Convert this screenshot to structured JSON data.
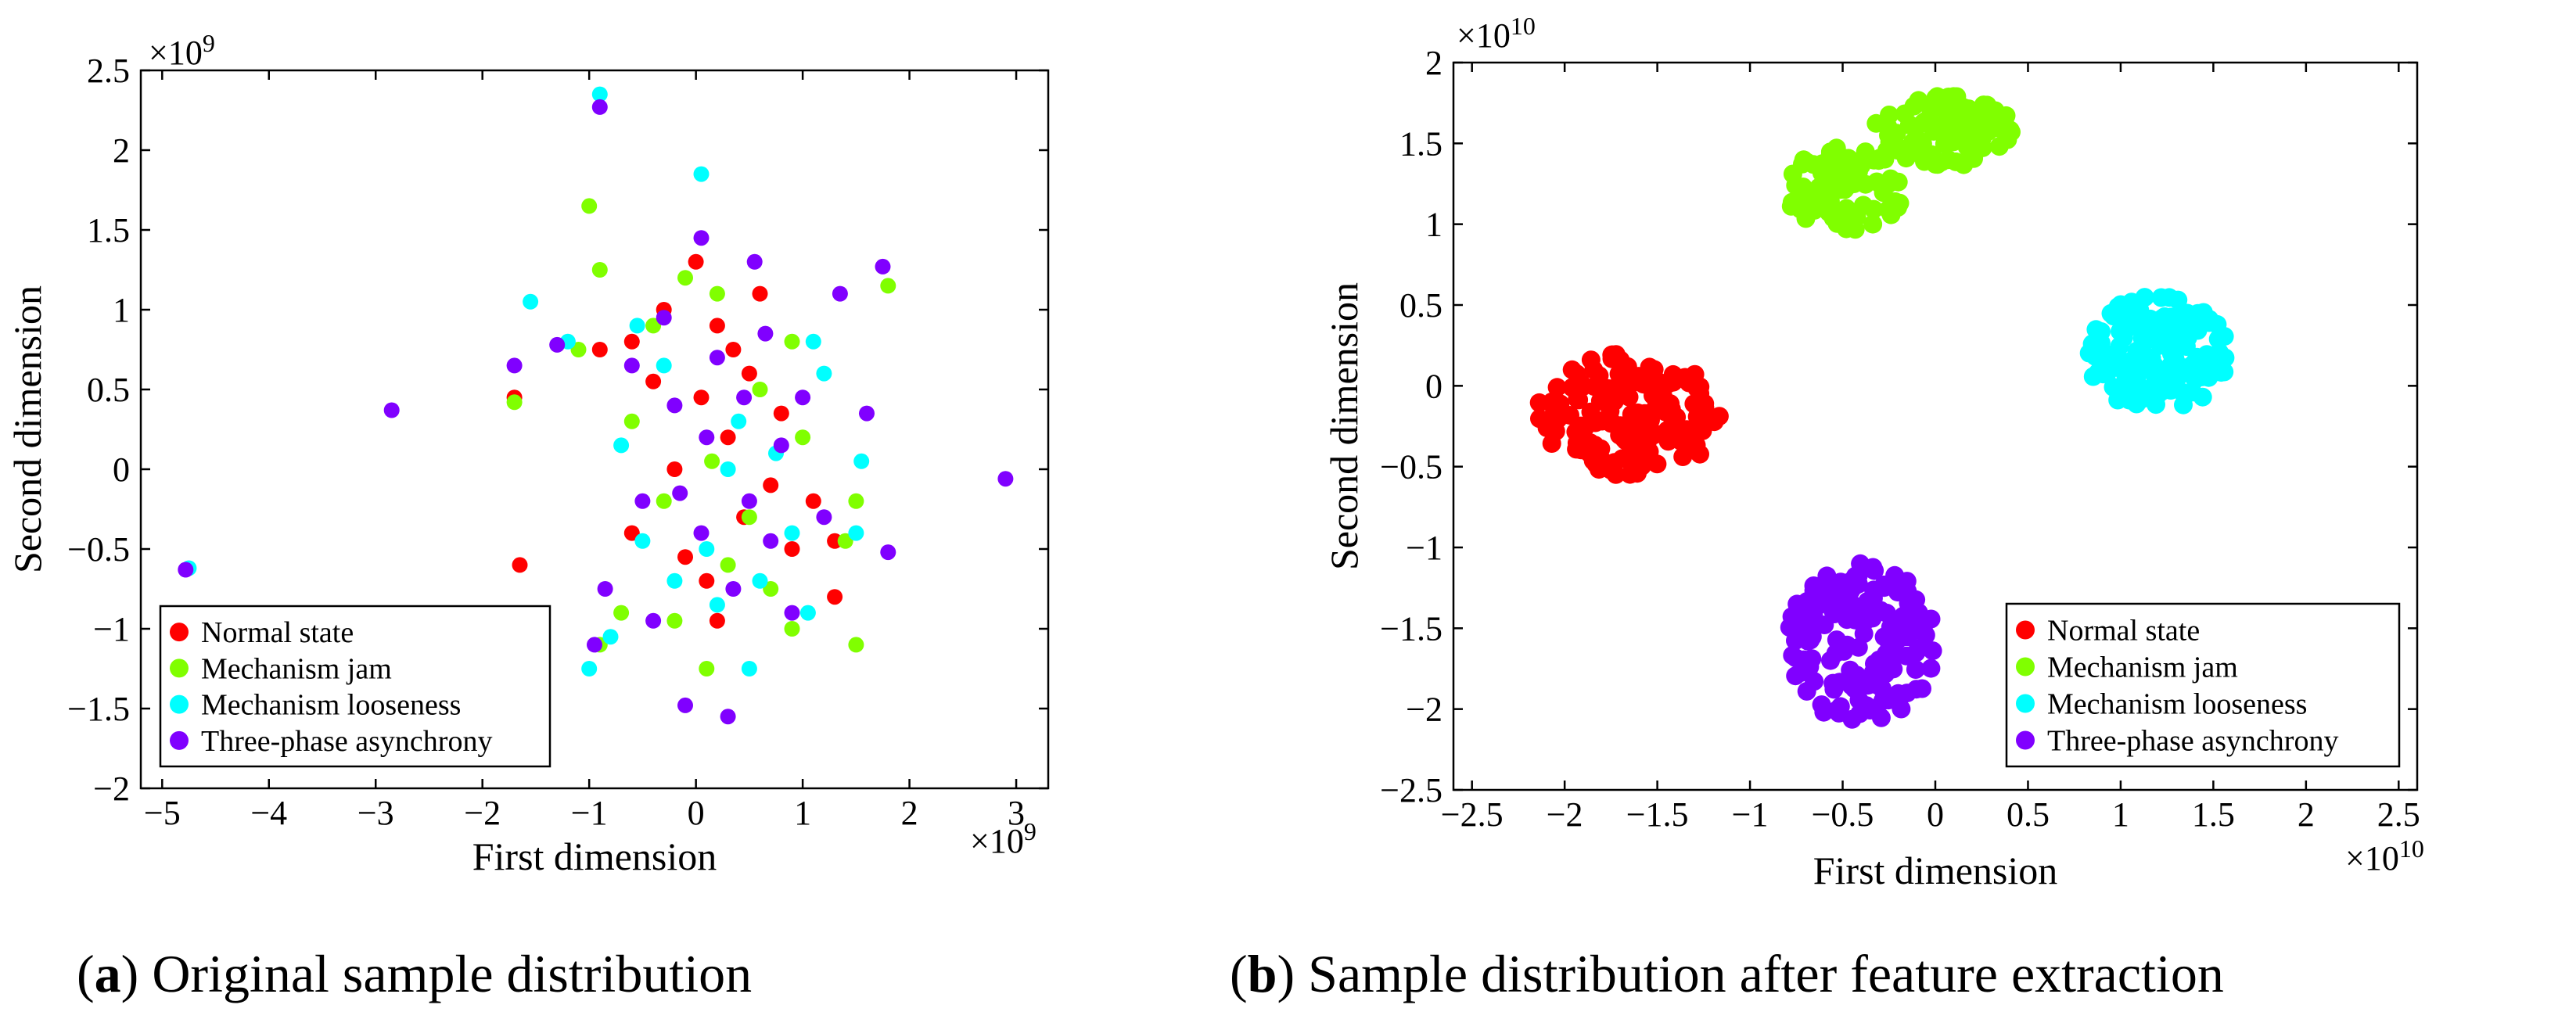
{
  "chart_data": [
    {
      "type": "scatter",
      "id": "a",
      "caption_letter": "a",
      "caption_text": "Original sample distribution",
      "xlabel": "First dimension",
      "ylabel": "Second dimension",
      "x_exponent": "×10",
      "x_exponent_power": "9",
      "y_exponent": "×10",
      "y_exponent_power": "9",
      "xlim": [
        -5.2,
        3.3
      ],
      "ylim": [
        -2,
        2.5
      ],
      "xticks": [
        -5,
        -4,
        -3,
        -2,
        -1,
        0,
        1,
        2,
        3
      ],
      "xtick_labels": [
        "−5",
        "−4",
        "−3",
        "−2",
        "−1",
        "0",
        "1",
        "2",
        "3"
      ],
      "yticks": [
        -2,
        -1.5,
        -1,
        -0.5,
        0,
        0.5,
        1,
        1.5,
        2,
        2.5
      ],
      "ytick_labels": [
        "−2",
        "−1.5",
        "−1",
        "−0.5",
        "0",
        "0.5",
        "1",
        "1.5",
        "2",
        "2.5"
      ],
      "legend_position": "bottom-left",
      "series": [
        {
          "name": "Normal state",
          "color": "#ff0000",
          "points": [
            [
              -1.65,
              -0.6
            ],
            [
              -1.7,
              0.45
            ],
            [
              -0.6,
              0.8
            ],
            [
              -0.3,
              1.0
            ],
            [
              0.0,
              1.3
            ],
            [
              0.2,
              0.9
            ],
            [
              0.5,
              0.6
            ],
            [
              0.3,
              0.2
            ],
            [
              -0.2,
              0.0
            ],
            [
              0.7,
              -0.1
            ],
            [
              0.9,
              -0.5
            ],
            [
              1.3,
              -0.45
            ],
            [
              1.1,
              -0.2
            ],
            [
              0.1,
              -0.7
            ],
            [
              -0.6,
              -0.4
            ],
            [
              0.2,
              -0.95
            ],
            [
              0.45,
              -0.3
            ],
            [
              -0.9,
              0.75
            ],
            [
              0.05,
              0.45
            ],
            [
              0.6,
              1.1
            ],
            [
              -0.1,
              -0.55
            ],
            [
              0.35,
              0.75
            ],
            [
              0.8,
              0.35
            ],
            [
              -0.4,
              0.55
            ],
            [
              1.3,
              -0.8
            ]
          ]
        },
        {
          "name": "Mechanism jam",
          "color": "#80ff00",
          "points": [
            [
              -1.7,
              0.42
            ],
            [
              -1.0,
              1.65
            ],
            [
              -0.9,
              1.25
            ],
            [
              -0.1,
              1.2
            ],
            [
              0.2,
              1.1
            ],
            [
              0.9,
              0.8
            ],
            [
              1.5,
              -0.2
            ],
            [
              1.8,
              1.15
            ],
            [
              1.5,
              -1.1
            ],
            [
              -0.2,
              -0.95
            ],
            [
              0.1,
              -1.25
            ],
            [
              -0.6,
              0.3
            ],
            [
              0.5,
              -0.3
            ],
            [
              0.9,
              -1.0
            ],
            [
              -0.9,
              -1.1
            ],
            [
              -0.4,
              0.9
            ],
            [
              1.4,
              -0.45
            ],
            [
              -0.7,
              -0.9
            ],
            [
              0.3,
              -0.6
            ],
            [
              0.6,
              0.5
            ],
            [
              1.0,
              0.2
            ],
            [
              -1.1,
              0.75
            ],
            [
              0.15,
              0.05
            ],
            [
              -0.3,
              -0.2
            ],
            [
              0.7,
              -0.75
            ]
          ]
        },
        {
          "name": "Mechanism looseness",
          "color": "#00ffff",
          "points": [
            [
              -4.75,
              -0.62
            ],
            [
              -0.9,
              2.35
            ],
            [
              0.05,
              1.85
            ],
            [
              -1.55,
              1.05
            ],
            [
              -1.0,
              -1.25
            ],
            [
              -0.8,
              -1.05
            ],
            [
              0.5,
              -1.25
            ],
            [
              1.55,
              0.05
            ],
            [
              1.5,
              -0.4
            ],
            [
              1.1,
              0.8
            ],
            [
              -1.2,
              0.8
            ],
            [
              -0.5,
              -0.45
            ],
            [
              0.2,
              -0.85
            ],
            [
              0.4,
              0.3
            ],
            [
              -0.3,
              0.65
            ],
            [
              0.9,
              -0.4
            ],
            [
              1.2,
              0.6
            ],
            [
              -0.7,
              0.15
            ],
            [
              0.1,
              -0.5
            ],
            [
              0.6,
              -0.7
            ],
            [
              1.05,
              -0.9
            ],
            [
              -0.2,
              -0.7
            ],
            [
              0.3,
              0.0
            ],
            [
              0.75,
              0.1
            ],
            [
              -0.55,
              0.9
            ]
          ]
        },
        {
          "name": "Three-phase asynchrony",
          "color": "#8000ff",
          "points": [
            [
              -4.78,
              -0.63
            ],
            [
              -2.85,
              0.37
            ],
            [
              -0.9,
              2.27
            ],
            [
              2.9,
              -0.06
            ],
            [
              0.05,
              1.45
            ],
            [
              -0.1,
              -1.48
            ],
            [
              0.3,
              -1.55
            ],
            [
              1.75,
              1.27
            ],
            [
              1.8,
              -0.52
            ],
            [
              1.35,
              1.1
            ],
            [
              1.6,
              0.35
            ],
            [
              -1.7,
              0.65
            ],
            [
              -0.85,
              -0.75
            ],
            [
              -0.95,
              -1.1
            ],
            [
              0.55,
              1.3
            ],
            [
              -0.4,
              -0.95
            ],
            [
              0.8,
              0.15
            ],
            [
              -0.2,
              0.4
            ],
            [
              0.2,
              0.7
            ],
            [
              0.5,
              -0.2
            ],
            [
              0.05,
              -0.4
            ],
            [
              -0.6,
              0.65
            ],
            [
              0.9,
              -0.9
            ],
            [
              1.0,
              0.45
            ],
            [
              -0.3,
              0.95
            ],
            [
              0.35,
              -0.75
            ],
            [
              0.65,
              0.85
            ],
            [
              -0.5,
              -0.2
            ],
            [
              1.2,
              -0.3
            ],
            [
              0.1,
              0.2
            ],
            [
              -1.3,
              0.78
            ],
            [
              0.45,
              0.45
            ],
            [
              -0.15,
              -0.15
            ],
            [
              0.7,
              -0.45
            ]
          ]
        }
      ]
    },
    {
      "type": "scatter",
      "id": "b",
      "caption_letter": "b",
      "caption_text": "Sample distribution after feature extraction",
      "xlabel": "First dimension",
      "ylabel": "Second dimension",
      "x_exponent": "×10",
      "x_exponent_power": "10",
      "y_exponent": "×10",
      "y_exponent_power": "10",
      "xlim": [
        -2.6,
        2.6
      ],
      "ylim": [
        -2.5,
        2.0
      ],
      "xticks": [
        -2.5,
        -2,
        -1.5,
        -1,
        -0.5,
        0,
        0.5,
        1,
        1.5,
        2,
        2.5
      ],
      "xtick_labels": [
        "−2.5",
        "−2",
        "−1.5",
        "−1",
        "−0.5",
        "0",
        "0.5",
        "1",
        "1.5",
        "2",
        "2.5"
      ],
      "yticks": [
        -2.5,
        -2,
        -1.5,
        -1,
        -0.5,
        0,
        0.5,
        1,
        1.5,
        2
      ],
      "ytick_labels": [
        "−2.5",
        "−2",
        "−1.5",
        "−1",
        "−0.5",
        "0",
        "0.5",
        "1",
        "1.5",
        "2"
      ],
      "legend_position": "bottom-right",
      "series": [
        {
          "name": "Normal state",
          "color": "#ff0000",
          "clusters": [
            {
              "cx": -1.65,
              "cy": -0.18,
              "rx": 0.5,
              "ry": 0.38,
              "n": 150,
              "seed": 11
            }
          ]
        },
        {
          "name": "Mechanism jam",
          "color": "#80ff00",
          "clusters": [
            {
              "cx": -0.48,
              "cy": 1.2,
              "rx": 0.32,
              "ry": 0.3,
              "n": 80,
              "seed": 21
            },
            {
              "cx": 0.05,
              "cy": 1.58,
              "rx": 0.38,
              "ry": 0.22,
              "n": 90,
              "seed": 22
            }
          ]
        },
        {
          "name": "Mechanism looseness",
          "color": "#00ffff",
          "clusters": [
            {
              "cx": 1.2,
              "cy": 0.2,
              "rx": 0.38,
              "ry": 0.36,
              "n": 140,
              "seed": 31
            }
          ]
        },
        {
          "name": "Three-phase asynchrony",
          "color": "#8000ff",
          "clusters": [
            {
              "cx": -0.4,
              "cy": -1.6,
              "rx": 0.4,
              "ry": 0.5,
              "n": 160,
              "seed": 41
            }
          ]
        }
      ]
    }
  ]
}
